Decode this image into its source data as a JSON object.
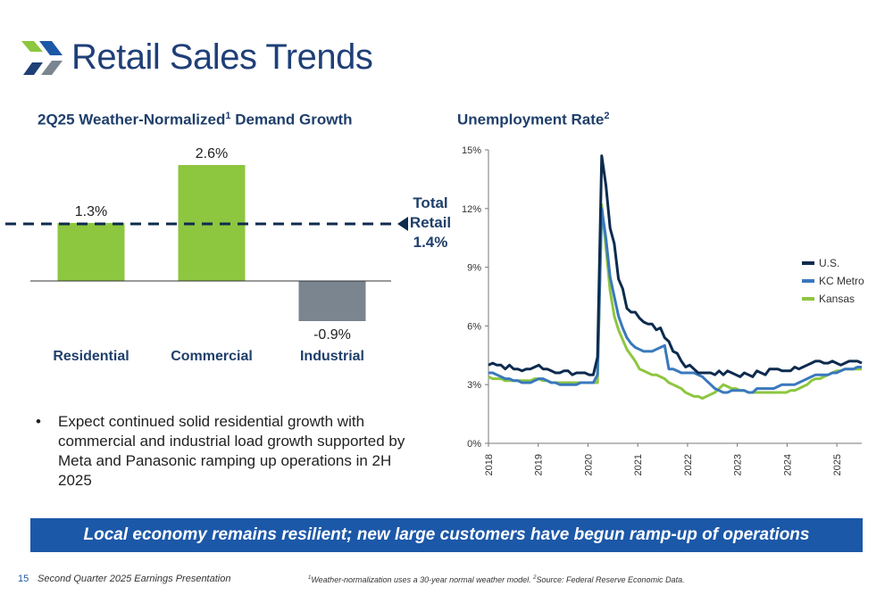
{
  "page": {
    "title": "Retail Sales Trends",
    "bullet": "Expect continued solid residential growth with commercial and industrial load growth supported by Meta and Panasonic ramping up operations in 2H 2025",
    "banner": "Local economy remains resilient; new large customers have begun ramp-up of operations",
    "page_number": "15",
    "presentation_name": "Second Quarter 2025 Earnings Presentation",
    "footnote_1": "Weather-normalization uses a 30-year normal weather model.",
    "footnote_2": "Source: Federal Reserve Economic Data."
  },
  "colors": {
    "navy": "#0d2b4e",
    "blue": "#3a78bd",
    "green": "#8dc63f",
    "gray": "#7a8590",
    "banner": "#1c58a8"
  },
  "chart_data": [
    {
      "type": "bar",
      "title": "2Q25 Weather-Normalized",
      "title_sup": "1",
      "title_rest": " Demand Growth",
      "categories": [
        "Residential",
        "Commercial",
        "Industrial"
      ],
      "values": [
        1.3,
        2.6,
        -0.9
      ],
      "data_labels": [
        "1.3%",
        "2.6%",
        "-0.9%"
      ],
      "bar_colors": [
        "#8dc63f",
        "#8dc63f",
        "#7a8590"
      ],
      "reference_line": {
        "value": 1.4,
        "label_line1": "Total",
        "label_line2": "Retail",
        "label_line3": "1.4%"
      }
    },
    {
      "type": "line",
      "title": "Unemployment Rate",
      "title_sup": "2",
      "ylim": [
        0,
        15
      ],
      "y_ticks": [
        0,
        3,
        6,
        9,
        12,
        15
      ],
      "y_tick_labels": [
        "0%",
        "3%",
        "6%",
        "9%",
        "12%",
        "15%"
      ],
      "x_ticks": [
        "2018",
        "2019",
        "2020",
        "2021",
        "2022",
        "2023",
        "2024",
        "2025"
      ],
      "legend": "right",
      "series": [
        {
          "name": "U.S.",
          "color": "#0d2b4e",
          "values": [
            4.0,
            4.1,
            4.0,
            4.0,
            3.8,
            4.0,
            3.8,
            3.8,
            3.7,
            3.8,
            3.8,
            3.9,
            4.0,
            3.8,
            3.8,
            3.7,
            3.6,
            3.6,
            3.7,
            3.7,
            3.5,
            3.6,
            3.6,
            3.6,
            3.5,
            3.5,
            4.4,
            14.7,
            13.2,
            11.0,
            10.2,
            8.4,
            7.9,
            6.9,
            6.7,
            6.7,
            6.4,
            6.2,
            6.1,
            6.1,
            5.8,
            5.9,
            5.4,
            5.2,
            4.7,
            4.6,
            4.2,
            3.9,
            4.0,
            3.8,
            3.6,
            3.6,
            3.6,
            3.6,
            3.5,
            3.7,
            3.5,
            3.7,
            3.6,
            3.5,
            3.4,
            3.6,
            3.5,
            3.4,
            3.7,
            3.6,
            3.5,
            3.8,
            3.8,
            3.8,
            3.7,
            3.7,
            3.7,
            3.9,
            3.8,
            3.9,
            4.0,
            4.1,
            4.2,
            4.2,
            4.1,
            4.1,
            4.2,
            4.1,
            4.0,
            4.1,
            4.2,
            4.2,
            4.2,
            4.1
          ]
        },
        {
          "name": "KC Metro",
          "color": "#3a78bd",
          "values": [
            3.6,
            3.6,
            3.5,
            3.4,
            3.3,
            3.3,
            3.2,
            3.2,
            3.1,
            3.1,
            3.1,
            3.2,
            3.3,
            3.3,
            3.2,
            3.1,
            3.1,
            3.0,
            3.0,
            3.0,
            3.0,
            3.0,
            3.1,
            3.1,
            3.1,
            3.1,
            3.5,
            12.0,
            10.5,
            8.5,
            7.5,
            6.5,
            5.9,
            5.4,
            5.1,
            4.9,
            4.8,
            4.7,
            4.7,
            4.7,
            4.8,
            4.9,
            5.0,
            3.8,
            3.8,
            3.7,
            3.6,
            3.6,
            3.6,
            3.6,
            3.5,
            3.4,
            3.2,
            3.0,
            2.8,
            2.7,
            2.6,
            2.6,
            2.7,
            2.7,
            2.7,
            2.7,
            2.6,
            2.6,
            2.8,
            2.8,
            2.8,
            2.8,
            2.8,
            2.9,
            3.0,
            3.0,
            3.0,
            3.0,
            3.1,
            3.2,
            3.3,
            3.4,
            3.5,
            3.5,
            3.5,
            3.5,
            3.6,
            3.6,
            3.7,
            3.8,
            3.8,
            3.8,
            3.9,
            3.9
          ]
        },
        {
          "name": "Kansas",
          "color": "#8dc63f",
          "values": [
            3.4,
            3.3,
            3.3,
            3.3,
            3.2,
            3.2,
            3.2,
            3.2,
            3.2,
            3.2,
            3.2,
            3.3,
            3.3,
            3.2,
            3.2,
            3.1,
            3.1,
            3.1,
            3.1,
            3.1,
            3.1,
            3.1,
            3.1,
            3.1,
            3.1,
            3.1,
            3.1,
            12.2,
            10.0,
            7.8,
            6.5,
            5.8,
            5.3,
            4.8,
            4.5,
            4.2,
            3.8,
            3.7,
            3.6,
            3.5,
            3.5,
            3.4,
            3.3,
            3.1,
            3.0,
            2.9,
            2.8,
            2.6,
            2.5,
            2.4,
            2.4,
            2.3,
            2.4,
            2.5,
            2.6,
            2.8,
            3.0,
            2.9,
            2.8,
            2.8,
            2.7,
            2.7,
            2.6,
            2.6,
            2.6,
            2.6,
            2.6,
            2.6,
            2.6,
            2.6,
            2.6,
            2.6,
            2.7,
            2.7,
            2.8,
            2.9,
            3.0,
            3.2,
            3.3,
            3.3,
            3.4,
            3.5,
            3.6,
            3.7,
            3.7,
            3.8,
            3.8,
            3.8,
            3.8,
            3.8
          ]
        }
      ]
    }
  ]
}
